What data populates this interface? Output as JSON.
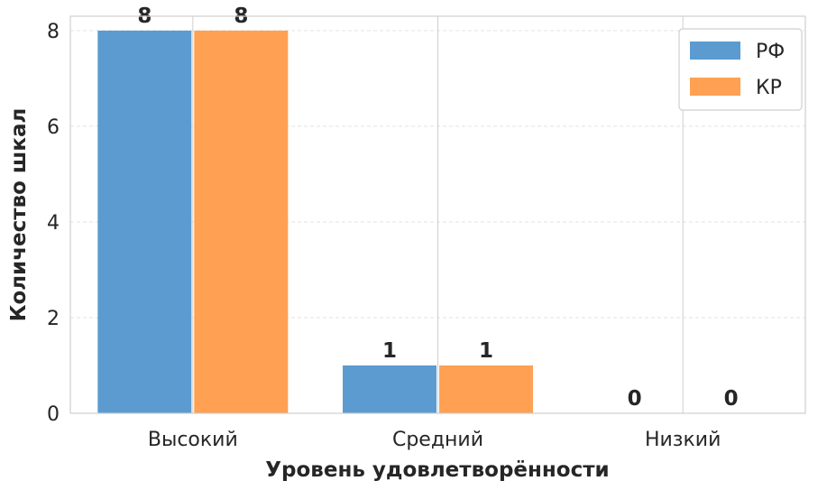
{
  "chart_data": {
    "type": "bar",
    "categories": [
      "Высокий",
      "Средний",
      "Низкий"
    ],
    "series": [
      {
        "name": "РФ",
        "values": [
          8,
          1,
          0
        ],
        "color": "#5b9bd0"
      },
      {
        "name": "КР",
        "values": [
          8,
          1,
          0
        ],
        "color": "#ffa052"
      }
    ],
    "xlabel": "Уровень удовлетворённости",
    "ylabel": "Количество шкал",
    "ylim": [
      0,
      8.3
    ],
    "yticks": [
      0,
      2,
      4,
      6,
      8
    ],
    "grid": true,
    "legend_position": "top-right"
  }
}
